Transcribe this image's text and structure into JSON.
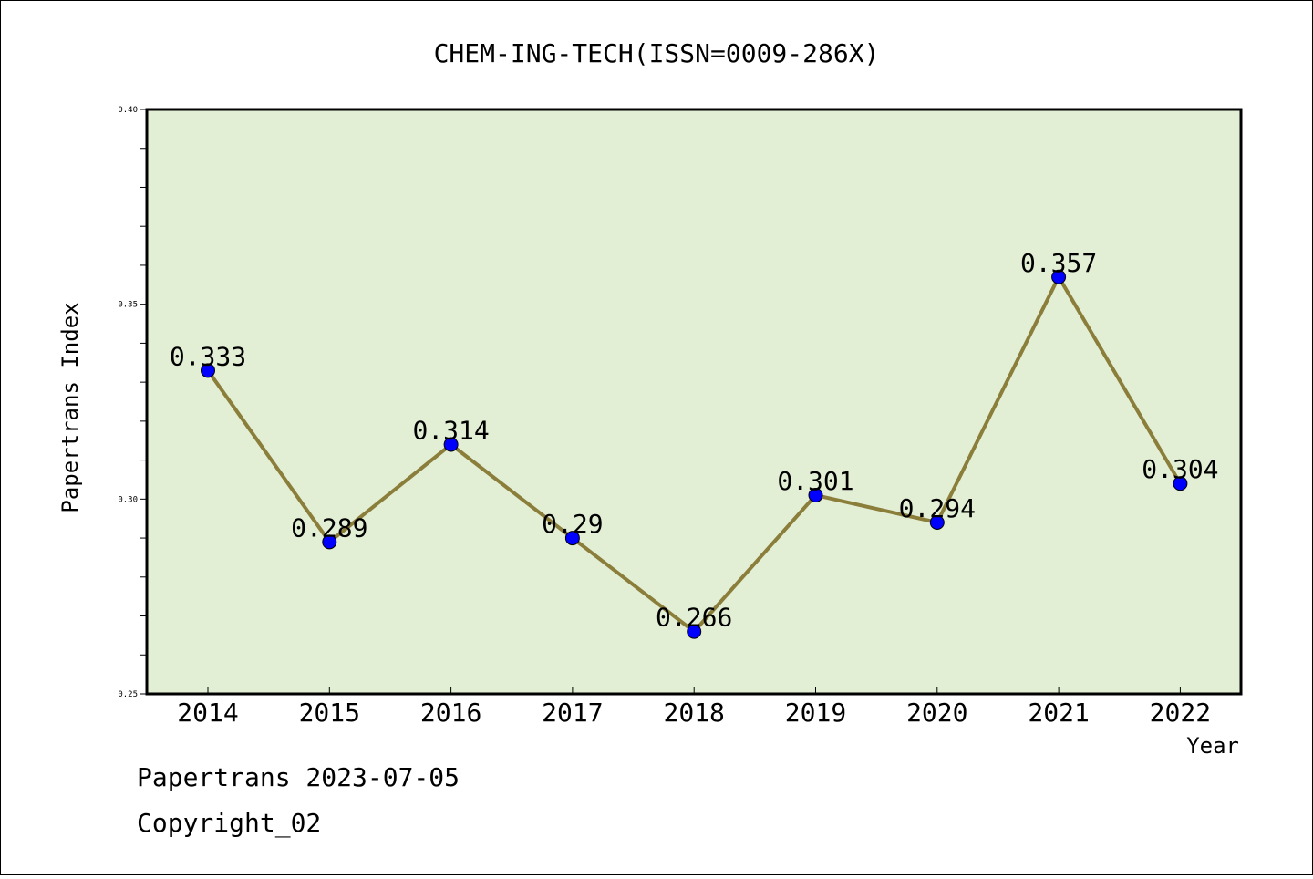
{
  "chart_data": {
    "type": "line",
    "title": "CHEM-ING-TECH(ISSN=0009-286X)",
    "xlabel": "Year",
    "ylabel": "Papertrans Index",
    "categories": [
      "2014",
      "2015",
      "2016",
      "2017",
      "2018",
      "2019",
      "2020",
      "2021",
      "2022"
    ],
    "series": [
      {
        "values": [
          0.333,
          0.289,
          0.314,
          0.29,
          0.266,
          0.301,
          0.294,
          0.357,
          0.304
        ],
        "labels": [
          "0.333",
          "0.289",
          "0.314",
          "0.29",
          "0.266",
          "0.301",
          "0.294",
          "0.357",
          "0.304"
        ]
      }
    ],
    "ylim": [
      0.25,
      0.4
    ],
    "yticks": [
      "0.25",
      "0.30",
      "0.35",
      "0.40"
    ],
    "grid": false,
    "legend": "none",
    "colors": {
      "plot_background": "#e2efd5",
      "line": "#8b7d3a",
      "marker": "#0000ff"
    }
  },
  "footer": {
    "date_line": "Papertrans 2023-07-05",
    "copyright_line": "Copyright_02"
  }
}
